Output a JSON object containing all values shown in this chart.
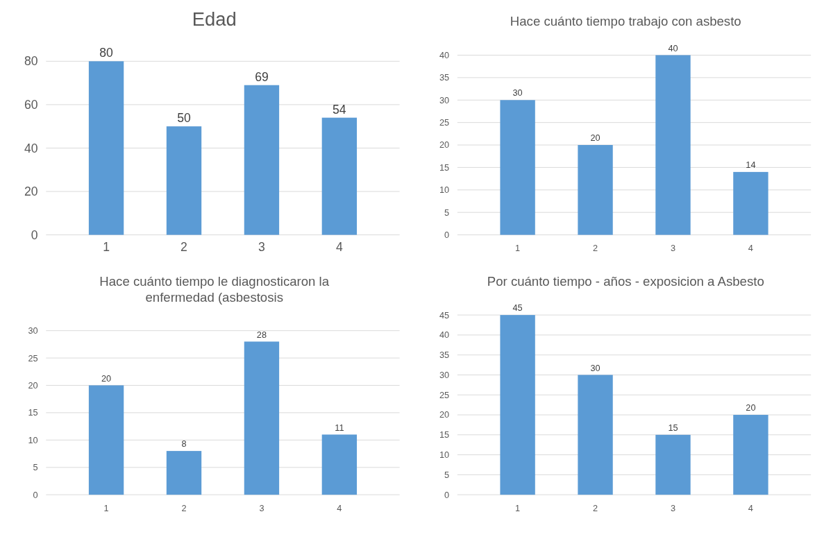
{
  "chart_data": [
    {
      "type": "bar",
      "title": "Edad",
      "categories": [
        "1",
        "2",
        "3",
        "4"
      ],
      "values": [
        80,
        50,
        69,
        54
      ],
      "color": "#5b9bd5",
      "ylim": [
        0,
        80
      ],
      "yticks": [
        0,
        20,
        40,
        60,
        80
      ],
      "grid": "y",
      "data_labels": true
    },
    {
      "type": "bar",
      "title": "Hace cuánto tiempo trabajo con asbesto",
      "categories": [
        "1",
        "2",
        "3",
        "4"
      ],
      "values": [
        30,
        20,
        40,
        14
      ],
      "color": "#5b9bd5",
      "ylim": [
        0,
        40
      ],
      "yticks": [
        0,
        5,
        10,
        15,
        20,
        25,
        30,
        35,
        40
      ],
      "grid": "y",
      "data_labels": true
    },
    {
      "type": "bar",
      "title": "Hace cuánto tiempo le diagnosticaron la enfermedad (asbestosis",
      "categories": [
        "1",
        "2",
        "3",
        "4"
      ],
      "values": [
        20,
        8,
        28,
        11
      ],
      "color": "#5b9bd5",
      "ylim": [
        0,
        30
      ],
      "yticks": [
        0,
        5,
        10,
        15,
        20,
        25,
        30
      ],
      "grid": "y",
      "data_labels": true
    },
    {
      "type": "bar",
      "title": "Por cuánto tiempo - años - exposicion a Asbesto",
      "categories": [
        "1",
        "2",
        "3",
        "4"
      ],
      "values": [
        45,
        30,
        15,
        20
      ],
      "color": "#5b9bd5",
      "ylim": [
        0,
        45
      ],
      "yticks": [
        0,
        5,
        10,
        15,
        20,
        25,
        30,
        35,
        40,
        45
      ],
      "grid": "y",
      "data_labels": true
    }
  ]
}
